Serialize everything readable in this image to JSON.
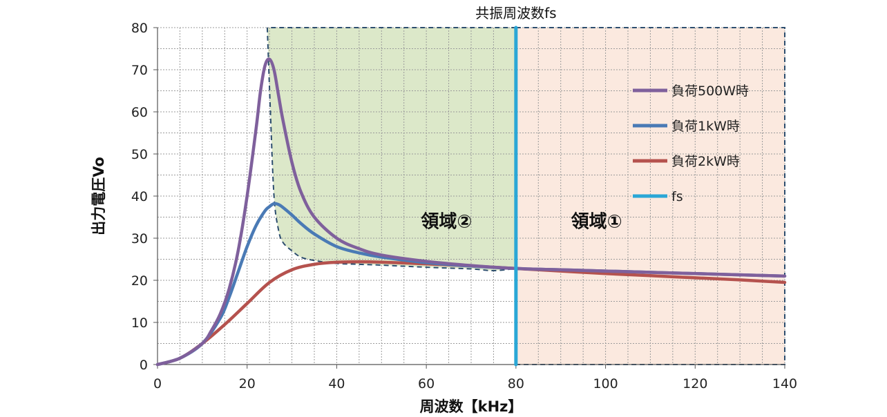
{
  "chart_data": {
    "type": "line",
    "title": "",
    "top_annotation": "共振周波数fs",
    "xlabel": "周波数【kHz】",
    "ylabel": "出力電圧Vo",
    "xlim": [
      0,
      140
    ],
    "ylim": [
      0,
      80
    ],
    "x_ticks": [
      0,
      20,
      40,
      60,
      80,
      100,
      120,
      140
    ],
    "y_ticks": [
      0,
      10,
      20,
      30,
      40,
      50,
      60,
      70,
      80
    ],
    "grid": true,
    "legend_position": "right",
    "series": [
      {
        "name": "負荷500W時",
        "color": "#7f609c",
        "x": [
          0,
          5,
          10,
          12,
          14,
          16,
          18,
          20,
          22,
          23,
          24,
          25,
          26,
          27,
          28,
          30,
          32,
          35,
          40,
          45,
          50,
          60,
          70,
          80,
          90,
          100,
          120,
          140
        ],
        "y": [
          0,
          1.5,
          5,
          8,
          12,
          18,
          27,
          40,
          56,
          65,
          71,
          72.5,
          70,
          64,
          58,
          48,
          41,
          35,
          30,
          27.5,
          26,
          24.5,
          23.5,
          22.8,
          22.5,
          22.2,
          21.6,
          21.0
        ]
      },
      {
        "name": "負荷1kW時",
        "color": "#4a7ab5",
        "x": [
          0,
          5,
          10,
          14,
          16,
          18,
          20,
          22,
          24,
          25,
          26,
          27,
          28,
          30,
          32,
          35,
          40,
          45,
          50,
          60,
          70,
          80,
          90,
          100,
          120,
          140
        ],
        "y": [
          0,
          1.5,
          5,
          11,
          16,
          22,
          28,
          33,
          36.5,
          37.5,
          38.2,
          38,
          37.3,
          35.5,
          33.5,
          31,
          28,
          26.5,
          25.5,
          24.2,
          23.4,
          22.8,
          22.5,
          22.2,
          21.6,
          21.0
        ]
      },
      {
        "name": "負荷2kW時",
        "color": "#b5524e",
        "x": [
          0,
          5,
          10,
          15,
          20,
          25,
          30,
          35,
          40,
          45,
          50,
          60,
          70,
          80,
          90,
          100,
          110,
          120,
          130,
          140
        ],
        "y": [
          0,
          1.5,
          5,
          9.5,
          14.5,
          19.5,
          22.5,
          23.8,
          24.3,
          24.4,
          24.3,
          23.9,
          23.4,
          22.8,
          22.2,
          21.6,
          21.1,
          20.6,
          20.1,
          19.5
        ]
      },
      {
        "name": "fs",
        "color": "#2aa7d6",
        "x": [
          80,
          80
        ],
        "y": [
          0,
          80
        ]
      }
    ],
    "regions": [
      {
        "label": "領域②",
        "color": "#d6e4bf",
        "x_range": [
          24.5,
          80
        ],
        "lower_boundary": {
          "x": [
            24.5,
            25.2,
            26,
            27,
            28,
            30,
            32,
            35,
            40,
            45,
            50,
            60,
            70,
            75,
            80
          ],
          "y": [
            80,
            60,
            40,
            32,
            29,
            27,
            25.5,
            24.7,
            24.0,
            23.8,
            23.6,
            23.1,
            22.7,
            22.3,
            22.8
          ]
        }
      },
      {
        "label": "領域①",
        "color": "#fbe9df",
        "x_range": [
          80,
          140
        ],
        "y_range": [
          0,
          80
        ]
      }
    ]
  }
}
